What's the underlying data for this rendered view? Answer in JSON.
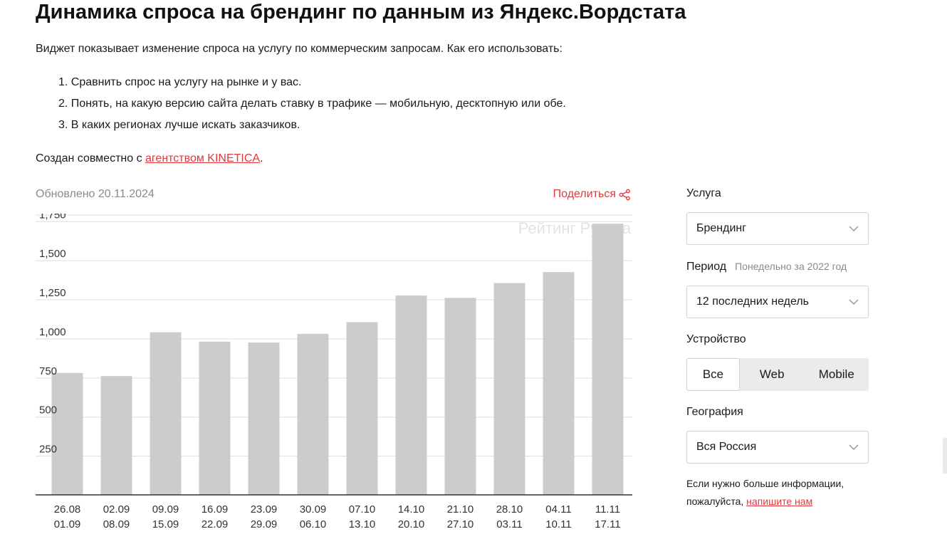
{
  "page": {
    "title": "Динамика спроса на брендинг по данным из Яндекс.Вордстата",
    "intro": "Виджет показывает изменение спроса на услугу по коммерческим запросам. Как его использовать:",
    "steps": [
      "1. Сравнить спрос на услугу на рынке и у вас.",
      "2. Понять, на какую версию сайта делать ставку в трафике — мобильную, десктопную или обе.",
      "3. В каких регионах лучше искать заказчиков."
    ],
    "credits_prefix": "Создан совместно с ",
    "credits_link": "агентством KINETICA",
    "credits_suffix": "."
  },
  "widget": {
    "updated": "Обновлено 20.11.2024",
    "share_label": "Поделиться",
    "watermark": "Рейтинг Рунета"
  },
  "chart_data": {
    "type": "bar",
    "categories": [
      [
        "26.08",
        "01.09"
      ],
      [
        "02.09",
        "08.09"
      ],
      [
        "09.09",
        "15.09"
      ],
      [
        "16.09",
        "22.09"
      ],
      [
        "23.09",
        "29.09"
      ],
      [
        "30.09",
        "06.10"
      ],
      [
        "07.10",
        "13.10"
      ],
      [
        "14.10",
        "20.10"
      ],
      [
        "21.10",
        "27.10"
      ],
      [
        "28.10",
        "03.11"
      ],
      [
        "04.11",
        "10.11"
      ],
      [
        "11.11",
        "17.11"
      ]
    ],
    "values": [
      780,
      760,
      1040,
      980,
      975,
      1030,
      1105,
      1275,
      1260,
      1355,
      1425,
      1735
    ],
    "yticks": [
      250,
      500,
      750,
      1000,
      1250,
      1500,
      1750
    ],
    "ytick_labels": [
      "250",
      "500",
      "750",
      "1,000",
      "1,250",
      "1,500",
      "1,750"
    ],
    "ylim": [
      0,
      1750
    ],
    "bar_color": "#cccccc",
    "grid": true
  },
  "filters": {
    "service_label": "Услуга",
    "service_value": "Брендинг",
    "period_label": "Период",
    "period_hint": "Понедельно за 2022 год",
    "period_value": "12 последних недель",
    "device_label": "Устройство",
    "device_options": [
      "Все",
      "Web",
      "Mobile"
    ],
    "device_selected": "Все",
    "geo_label": "География",
    "geo_value": "Вся Россия",
    "info_text": "Если нужно больше информации, пожалуйста, ",
    "info_link": "напишите нам"
  },
  "colors": {
    "accent": "#e0393e",
    "muted": "#8a8a8a",
    "bar": "#cccccc"
  }
}
